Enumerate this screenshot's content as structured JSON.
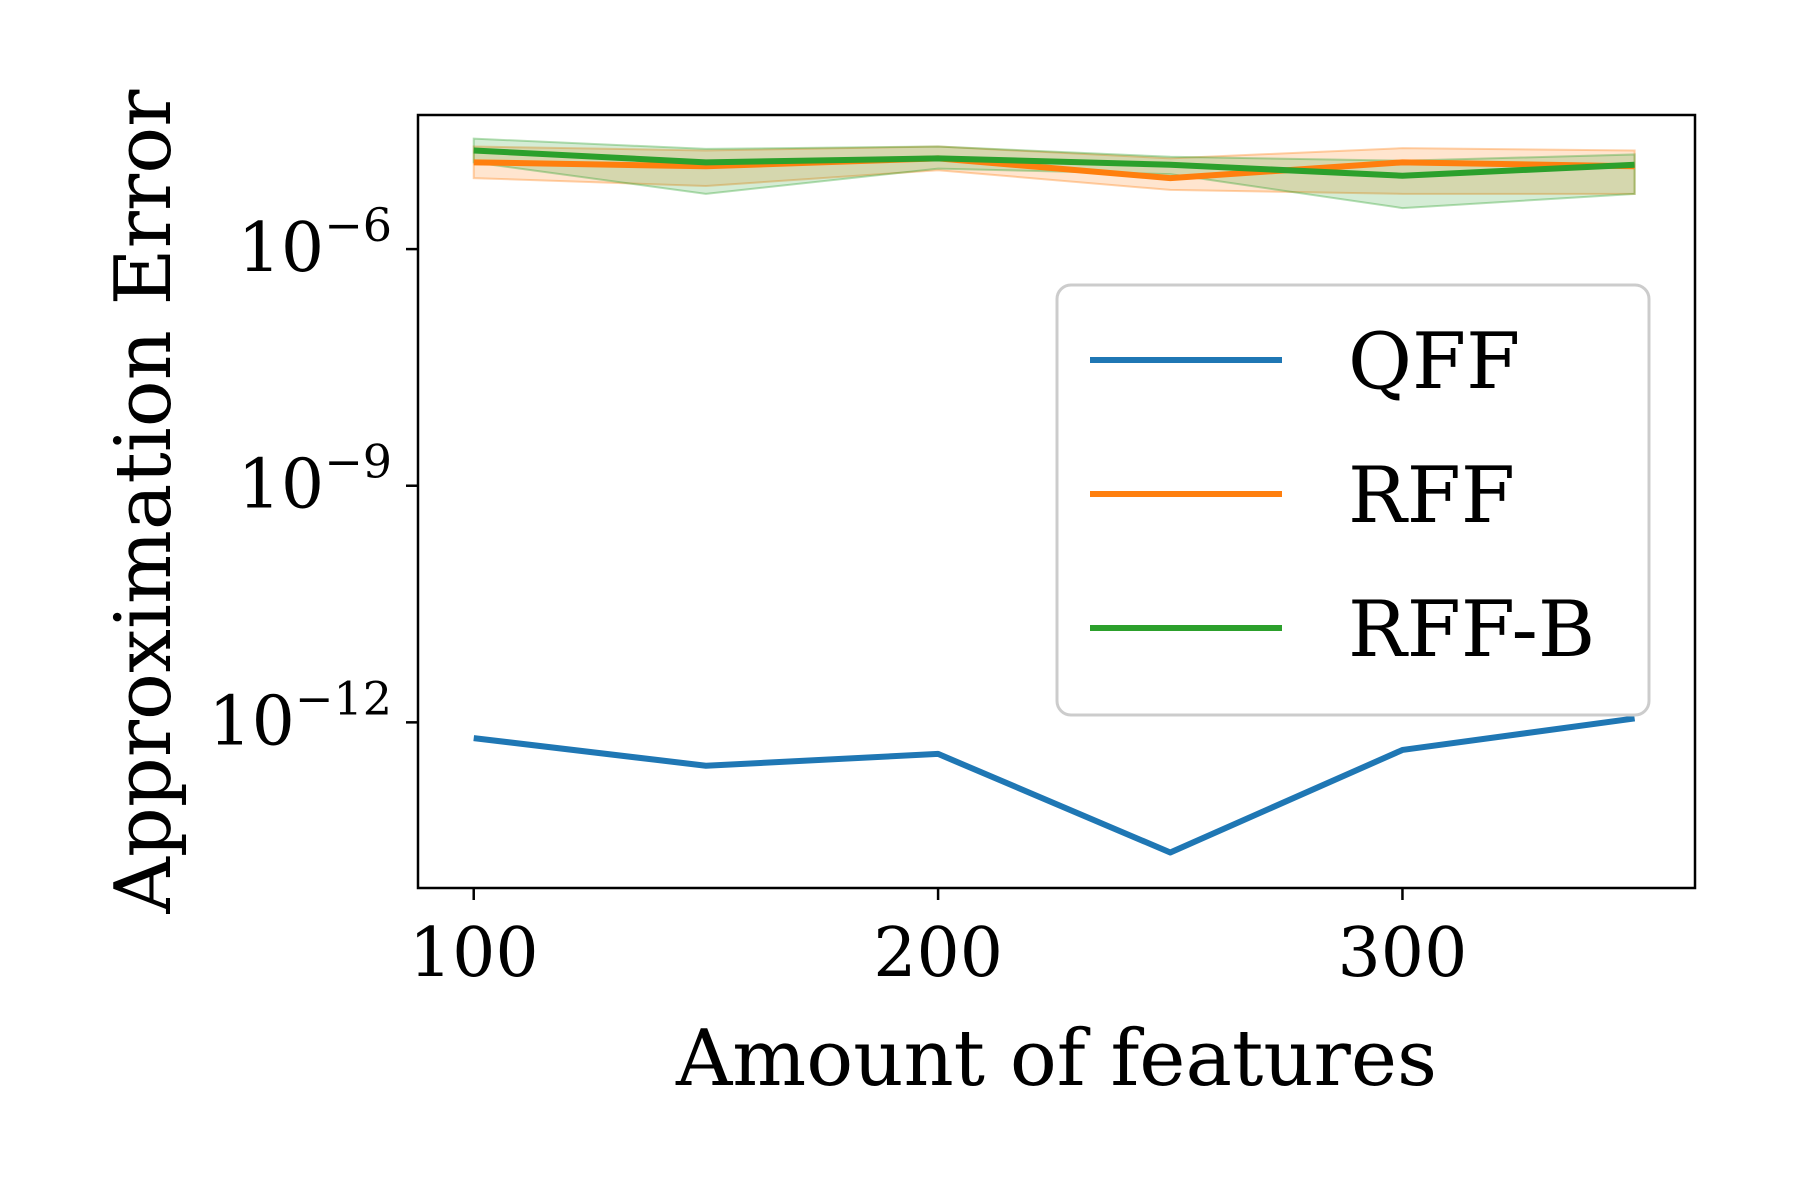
{
  "chart_data": {
    "type": "line",
    "title": "",
    "xlabel": "Amount of features",
    "ylabel": "Approximation Error",
    "yscale": "log",
    "xlim": [
      88,
      363
    ],
    "ylim_log10": [
      -14.1,
      -4.3
    ],
    "x_ticks": [
      {
        "value": 100,
        "label": "100"
      },
      {
        "value": 200,
        "label": "200"
      },
      {
        "value": 300,
        "label": "300"
      }
    ],
    "y_ticks": [
      {
        "log10": -6,
        "base": "10",
        "exp": "−6"
      },
      {
        "log10": -9,
        "base": "10",
        "exp": "−9"
      },
      {
        "log10": -12,
        "base": "10",
        "exp": "−12"
      }
    ],
    "grid": false,
    "legend_position": "center-right",
    "x": [
      100,
      150,
      200,
      250,
      300,
      350
    ],
    "series": [
      {
        "name": "QFF",
        "color": "#1f77b4",
        "log10_values": [
          -12.2,
          -12.55,
          -12.4,
          -13.65,
          -12.35,
          -11.95
        ],
        "band": false
      },
      {
        "name": "RFF",
        "color": "#ff7f0e",
        "log10_values": [
          -4.9,
          -4.95,
          -4.85,
          -5.1,
          -4.9,
          -4.95
        ],
        "band": true,
        "log10_lower": [
          -5.1,
          -5.2,
          -5.0,
          -5.25,
          -5.3,
          -5.3
        ],
        "log10_upper": [
          -4.7,
          -4.75,
          -4.7,
          -4.85,
          -4.72,
          -4.75
        ]
      },
      {
        "name": "RFF-B",
        "color": "#2ca02c",
        "log10_values": [
          -4.75,
          -4.9,
          -4.85,
          -4.93,
          -5.07,
          -4.93
        ],
        "band": true,
        "log10_lower": [
          -4.9,
          -5.3,
          -4.98,
          -5.05,
          -5.48,
          -5.3
        ],
        "log10_upper": [
          -4.6,
          -4.73,
          -4.7,
          -4.83,
          -4.88,
          -4.8
        ]
      }
    ]
  }
}
